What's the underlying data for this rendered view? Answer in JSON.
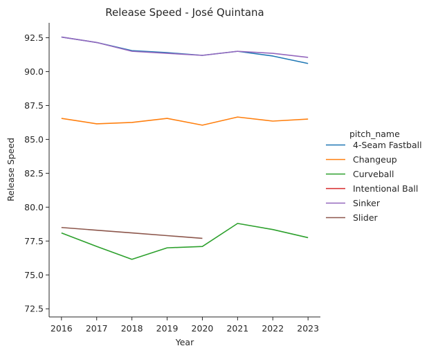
{
  "chart_data": {
    "type": "line",
    "title": "Release Speed - José Quintana",
    "xlabel": "Year",
    "ylabel": "Release Speed",
    "x": [
      2016,
      2017,
      2018,
      2019,
      2020,
      2021,
      2022,
      2023
    ],
    "x_ticks": [
      "2016",
      "2017",
      "2018",
      "2019",
      "2020",
      "2021",
      "2022",
      "2023"
    ],
    "xlim": [
      2015.65,
      2023.35
    ],
    "ylim": [
      71.9,
      93.6
    ],
    "y_ticks": [
      72.5,
      75.0,
      77.5,
      80.0,
      82.5,
      85.0,
      87.5,
      90.0,
      92.5
    ],
    "y_tick_labels": [
      "72.5",
      "75.0",
      "77.5",
      "80.0",
      "82.5",
      "85.0",
      "87.5",
      "90.0",
      "92.5"
    ],
    "grid": false,
    "legend": {
      "title": "pitch_name",
      "placement": "right",
      "entries": [
        "4-Seam Fastball",
        "Changeup",
        "Curveball",
        "Intentional Ball",
        "Sinker",
        "Slider"
      ]
    },
    "series": [
      {
        "name": "4-Seam Fastball",
        "color": "#1f77b4",
        "values": [
          92.55,
          92.15,
          91.55,
          91.4,
          91.2,
          91.5,
          91.15,
          90.6
        ]
      },
      {
        "name": "Changeup",
        "color": "#ff7f0e",
        "values": [
          86.55,
          86.15,
          86.25,
          86.55,
          86.05,
          86.65,
          86.35,
          86.5
        ]
      },
      {
        "name": "Curveball",
        "color": "#2ca02c",
        "values": [
          78.1,
          77.1,
          76.15,
          77.0,
          77.1,
          78.8,
          78.35,
          77.75
        ]
      },
      {
        "name": "Intentional Ball",
        "color": "#d62728",
        "values": [
          null,
          null,
          null,
          null,
          null,
          null,
          null,
          null
        ]
      },
      {
        "name": "Sinker",
        "color": "#9467bd",
        "values": [
          92.55,
          92.15,
          91.5,
          91.35,
          91.2,
          91.5,
          91.35,
          91.05
        ]
      },
      {
        "name": "Slider",
        "color": "#8c564b",
        "values": [
          78.5,
          78.3,
          78.1,
          77.9,
          77.7,
          null,
          null,
          null
        ]
      }
    ]
  }
}
